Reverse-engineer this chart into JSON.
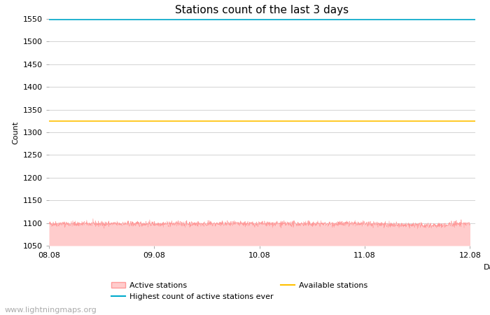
{
  "title": "Stations count of the last 3 days",
  "xlabel": "Day",
  "ylabel": "Count",
  "ylim": [
    1050,
    1550
  ],
  "yticks": [
    1050,
    1100,
    1150,
    1200,
    1250,
    1300,
    1350,
    1400,
    1450,
    1500,
    1550
  ],
  "x_start": 0.0,
  "x_end": 4.0,
  "xtick_positions": [
    0.0,
    1.0,
    2.0,
    3.0,
    4.0
  ],
  "xtick_labels": [
    "08.08",
    "09.08",
    "10.08",
    "11.08",
    "12.08"
  ],
  "available_stations_value": 1325,
  "highest_ever_value": 1549,
  "active_stations_mean": 1098,
  "active_stations_noise": 3,
  "active_fill_color": "#FFCCCC",
  "active_line_color": "#FF9999",
  "available_color": "#FFC000",
  "highest_color": "#00AACC",
  "background_color": "#FFFFFF",
  "grid_color": "#CCCCCC",
  "watermark": "www.lightningmaps.org",
  "watermark_color": "#AAAAAA",
  "watermark_fontsize": 8,
  "title_fontsize": 11,
  "axis_label_fontsize": 8,
  "tick_fontsize": 8,
  "legend_fontsize": 8,
  "n_points": 2000
}
